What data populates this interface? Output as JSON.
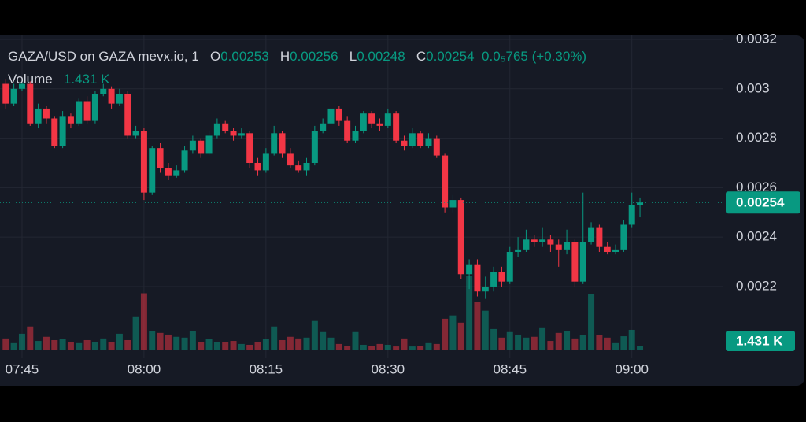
{
  "chart_data": {
    "type": "candlestick",
    "symbol": "GAZA/USD on GAZA mevx.io, 1",
    "ohlc_letters": [
      "O",
      "H",
      "L",
      "C"
    ],
    "change": "0.0₅765",
    "change_pct": "(+0.30%)",
    "up_color": "#089981",
    "down_color": "#f23645",
    "grid": true,
    "x": [
      "07:43",
      "07:44",
      "07:45",
      "07:46",
      "07:47",
      "07:48",
      "07:49",
      "07:50",
      "07:51",
      "07:52",
      "07:53",
      "07:54",
      "07:55",
      "07:56",
      "07:57",
      "07:58",
      "07:59",
      "08:00",
      "08:01",
      "08:02",
      "08:03",
      "08:04",
      "08:05",
      "08:06",
      "08:07",
      "08:08",
      "08:09",
      "08:10",
      "08:11",
      "08:12",
      "08:13",
      "08:14",
      "08:15",
      "08:16",
      "08:17",
      "08:18",
      "08:19",
      "08:20",
      "08:21",
      "08:22",
      "08:23",
      "08:24",
      "08:25",
      "08:26",
      "08:27",
      "08:28",
      "08:29",
      "08:30",
      "08:31",
      "08:32",
      "08:33",
      "08:34",
      "08:35",
      "08:36",
      "08:37",
      "08:38",
      "08:39",
      "08:40",
      "08:41",
      "08:42",
      "08:43",
      "08:44",
      "08:45",
      "08:46",
      "08:47",
      "08:48",
      "08:49",
      "08:50",
      "08:51",
      "08:52",
      "08:53",
      "08:54",
      "08:55",
      "08:56",
      "08:57",
      "08:58",
      "08:59",
      "09:00",
      "09:01"
    ],
    "xticks": [
      "07:45",
      "08:00",
      "08:15",
      "08:30",
      "08:45",
      "09:00"
    ],
    "open": [
      0.00302,
      0.00294,
      0.003,
      0.00302,
      0.00286,
      0.00292,
      0.00288,
      0.00277,
      0.00289,
      0.00286,
      0.00295,
      0.00287,
      0.00298,
      0.003,
      0.00294,
      0.00298,
      0.00281,
      0.00283,
      0.00258,
      0.00276,
      0.00268,
      0.00265,
      0.00267,
      0.00275,
      0.00279,
      0.00274,
      0.00281,
      0.00286,
      0.00283,
      0.00281,
      0.00282,
      0.0027,
      0.00267,
      0.00274,
      0.00282,
      0.00274,
      0.00269,
      0.00267,
      0.0027,
      0.00283,
      0.00286,
      0.00292,
      0.00287,
      0.00279,
      0.00283,
      0.0029,
      0.00286,
      0.00285,
      0.0029,
      0.00279,
      0.00277,
      0.00282,
      0.00277,
      0.0028,
      0.00273,
      0.00252,
      0.00255,
      0.00225,
      0.00229,
      0.00218,
      0.0022,
      0.00226,
      0.00222,
      0.00234,
      0.00235,
      0.00239,
      0.00238,
      0.00239,
      0.00237,
      0.00235,
      0.00238,
      0.00222,
      0.00238,
      0.00244,
      0.00236,
      0.00234,
      0.00235,
      0.00245,
      0.00253
    ],
    "high": [
      0.00304,
      0.00302,
      0.00304,
      0.00303,
      0.00294,
      0.00293,
      0.00289,
      0.00291,
      0.0029,
      0.00296,
      0.00297,
      0.00299,
      0.00302,
      0.00301,
      0.003,
      0.00299,
      0.00285,
      0.00284,
      0.00277,
      0.00278,
      0.0027,
      0.00269,
      0.00277,
      0.00281,
      0.0028,
      0.00283,
      0.00288,
      0.00287,
      0.00284,
      0.00284,
      0.00283,
      0.00272,
      0.00276,
      0.00285,
      0.00283,
      0.00276,
      0.00271,
      0.00272,
      0.00285,
      0.00288,
      0.00293,
      0.00293,
      0.00289,
      0.00285,
      0.00291,
      0.00291,
      0.00288,
      0.00292,
      0.00291,
      0.00281,
      0.00284,
      0.00283,
      0.00282,
      0.00281,
      0.00274,
      0.00257,
      0.00256,
      0.00231,
      0.00231,
      0.00224,
      0.00228,
      0.00228,
      0.00236,
      0.0024,
      0.00243,
      0.00241,
      0.00244,
      0.00241,
      0.00239,
      0.00243,
      0.00239,
      0.00258,
      0.00246,
      0.00245,
      0.00238,
      0.00237,
      0.00247,
      0.00258,
      0.00256
    ],
    "low": [
      0.00292,
      0.00293,
      0.00299,
      0.00285,
      0.00284,
      0.00286,
      0.00276,
      0.00276,
      0.00284,
      0.00285,
      0.00286,
      0.00286,
      0.00297,
      0.00292,
      0.00293,
      0.0028,
      0.0028,
      0.00255,
      0.00257,
      0.00266,
      0.00263,
      0.00264,
      0.00266,
      0.00274,
      0.00272,
      0.00273,
      0.0028,
      0.00282,
      0.00279,
      0.0028,
      0.00268,
      0.00265,
      0.00266,
      0.00273,
      0.00272,
      0.00268,
      0.00266,
      0.00265,
      0.00269,
      0.00282,
      0.00285,
      0.00285,
      0.00278,
      0.00278,
      0.00282,
      0.00284,
      0.00283,
      0.00284,
      0.00278,
      0.00275,
      0.00276,
      0.00276,
      0.00276,
      0.00272,
      0.0025,
      0.0025,
      0.00223,
      0.00219,
      0.00216,
      0.00215,
      0.00218,
      0.0022,
      0.00221,
      0.00232,
      0.00234,
      0.00236,
      0.00236,
      0.00234,
      0.00228,
      0.00233,
      0.0022,
      0.00221,
      0.00237,
      0.00234,
      0.00233,
      0.00233,
      0.00234,
      0.00244,
      0.00248
    ],
    "close": [
      0.00294,
      0.003,
      0.00302,
      0.00286,
      0.00292,
      0.00288,
      0.00277,
      0.00289,
      0.00286,
      0.00295,
      0.00287,
      0.00298,
      0.003,
      0.00294,
      0.00298,
      0.00281,
      0.00283,
      0.00258,
      0.00276,
      0.00268,
      0.00265,
      0.00267,
      0.00275,
      0.00279,
      0.00274,
      0.00281,
      0.00286,
      0.00283,
      0.00281,
      0.00282,
      0.0027,
      0.00267,
      0.00274,
      0.00282,
      0.00274,
      0.00269,
      0.00267,
      0.0027,
      0.00283,
      0.00286,
      0.00292,
      0.00287,
      0.00279,
      0.00283,
      0.0029,
      0.00286,
      0.00285,
      0.0029,
      0.00279,
      0.00277,
      0.00282,
      0.00277,
      0.0028,
      0.00273,
      0.00252,
      0.00255,
      0.00225,
      0.00229,
      0.00218,
      0.0022,
      0.00226,
      0.00222,
      0.00234,
      0.00235,
      0.00239,
      0.00238,
      0.00239,
      0.00237,
      0.00235,
      0.00238,
      0.00222,
      0.00238,
      0.00244,
      0.00236,
      0.00234,
      0.00235,
      0.00245,
      0.00253,
      0.00254
    ],
    "volume": {
      "name": "Volume",
      "last_label": "1.431 K",
      "values": [
        4300,
        2600,
        6000,
        8600,
        3400,
        4900,
        3700,
        4000,
        3100,
        2600,
        3700,
        3100,
        4300,
        2900,
        6000,
        3700,
        12000,
        20600,
        6900,
        6300,
        5700,
        4900,
        4600,
        6900,
        3100,
        4000,
        3100,
        2900,
        3400,
        2300,
        2000,
        2900,
        4000,
        8600,
        3700,
        4900,
        4300,
        4600,
        10600,
        6600,
        4600,
        2300,
        1700,
        6600,
        2000,
        1700,
        2300,
        2000,
        1400,
        4300,
        1400,
        1700,
        2600,
        2300,
        11400,
        12600,
        10000,
        27000,
        17400,
        14300,
        7700,
        4600,
        6600,
        5700,
        4600,
        4900,
        8300,
        3400,
        6300,
        7100,
        4300,
        5400,
        20300,
        5400,
        4600,
        2600,
        5100,
        7400,
        1431
      ]
    },
    "ylim": [
      0.00191,
      0.003216
    ],
    "yticks": [
      0.0032,
      0.003,
      0.0028,
      0.0026,
      0.0024,
      0.0022
    ]
  }
}
